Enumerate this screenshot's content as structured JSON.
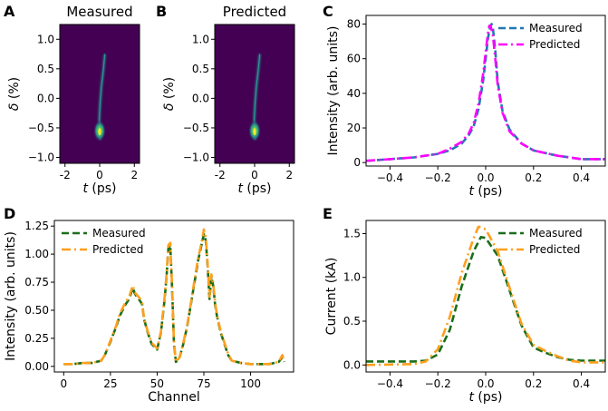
{
  "colors": {
    "measured_blue": "#1f77b4",
    "predicted_magenta": "#ff00ff",
    "measured_green": "#1a6e1a",
    "predicted_orange": "#ff9f1c",
    "image_bg": "#440154"
  },
  "panels": {
    "A": {
      "letter": "A",
      "title": "Measured"
    },
    "B": {
      "letter": "B",
      "title": "Predicted"
    },
    "C": {
      "letter": "C"
    },
    "D": {
      "letter": "D"
    },
    "E": {
      "letter": "E"
    }
  },
  "chart_data": [
    {
      "id": "A",
      "type": "heatmap",
      "title": "Measured",
      "xlabel": "t (ps)",
      "ylabel": "δ (%)",
      "xlim": [
        -2.3,
        2.3
      ],
      "ylim": [
        -1.1,
        1.25
      ],
      "xticks": [
        -2,
        0,
        2
      ],
      "yticks": [
        -1.0,
        -0.5,
        0.0,
        0.5,
        1.0
      ],
      "colormap": "viridis",
      "trace": [
        [
          0.3,
          0.75
        ],
        [
          0.22,
          0.5
        ],
        [
          0.1,
          0.2
        ],
        [
          0.02,
          -0.1
        ],
        [
          -0.02,
          -0.35
        ],
        [
          0.0,
          -0.55
        ],
        [
          0.02,
          -0.7
        ]
      ]
    },
    {
      "id": "B",
      "type": "heatmap",
      "title": "Predicted",
      "xlabel": "t (ps)",
      "ylabel": "δ (%)",
      "xlim": [
        -2.3,
        2.3
      ],
      "ylim": [
        -1.1,
        1.25
      ],
      "xticks": [
        -2,
        0,
        2
      ],
      "yticks": [
        -1.0,
        -0.5,
        0.0,
        0.5,
        1.0
      ],
      "colormap": "viridis",
      "trace": [
        [
          0.3,
          0.75
        ],
        [
          0.22,
          0.5
        ],
        [
          0.1,
          0.2
        ],
        [
          0.02,
          -0.1
        ],
        [
          -0.02,
          -0.35
        ],
        [
          0.0,
          -0.55
        ],
        [
          0.02,
          -0.7
        ]
      ]
    },
    {
      "id": "C",
      "type": "line",
      "xlabel": "t (ps)",
      "ylabel": "Intensity (arb. units)",
      "xlim": [
        -0.5,
        0.5
      ],
      "ylim": [
        -2,
        85
      ],
      "xticks": [
        -0.4,
        -0.2,
        0.0,
        0.2,
        0.4
      ],
      "xtick_labels": [
        "−0.4",
        "−0.2",
        "0.0",
        "0.2",
        "0.4"
      ],
      "yticks": [
        0,
        20,
        40,
        60,
        80
      ],
      "legend": "top-right",
      "series": [
        {
          "name": "Measured",
          "color": "#1f77b4",
          "style": "dashed",
          "x": [
            -0.5,
            -0.4,
            -0.3,
            -0.2,
            -0.15,
            -0.1,
            -0.07,
            -0.05,
            -0.03,
            -0.01,
            0.0,
            0.01,
            0.02,
            0.025,
            0.03,
            0.04,
            0.05,
            0.07,
            0.1,
            0.15,
            0.2,
            0.3,
            0.4,
            0.5
          ],
          "y": [
            1,
            2,
            3,
            5,
            7,
            11,
            16,
            21,
            31,
            48,
            60,
            72,
            79,
            80,
            78,
            65,
            47,
            30,
            19,
            11,
            7,
            4,
            2,
            2
          ]
        },
        {
          "name": "Predicted",
          "color": "#ff00ff",
          "style": "dashdot",
          "x": [
            -0.5,
            -0.4,
            -0.3,
            -0.2,
            -0.15,
            -0.1,
            -0.07,
            -0.05,
            -0.03,
            -0.01,
            0.0,
            0.01,
            0.015,
            0.02,
            0.03,
            0.04,
            0.05,
            0.07,
            0.1,
            0.15,
            0.2,
            0.3,
            0.4,
            0.5
          ],
          "y": [
            1,
            2,
            3,
            5,
            8,
            12,
            17,
            23,
            34,
            52,
            64,
            75,
            79,
            79,
            74,
            60,
            45,
            29,
            18,
            11,
            7,
            4,
            2,
            2
          ]
        }
      ]
    },
    {
      "id": "D",
      "type": "line",
      "xlabel": "Channel",
      "ylabel": "Intensity (arb. units)",
      "xlim": [
        -5,
        123
      ],
      "ylim": [
        -0.05,
        1.3
      ],
      "xticks": [
        0,
        25,
        50,
        75,
        100
      ],
      "yticks": [
        0.0,
        0.25,
        0.5,
        0.75,
        1.0,
        1.25
      ],
      "ytick_labels": [
        "0.00",
        "0.25",
        "0.50",
        "0.75",
        "1.00",
        "1.25"
      ],
      "legend": "top-left",
      "series": [
        {
          "name": "Measured",
          "color": "#1a6e1a",
          "style": "dashed",
          "x": [
            0,
            5,
            10,
            15,
            20,
            22,
            25,
            28,
            30,
            33,
            35,
            37,
            38,
            40,
            41,
            42,
            43,
            45,
            47,
            50,
            52,
            54,
            55,
            56,
            57,
            58,
            59,
            60,
            62,
            64,
            66,
            68,
            70,
            72,
            74,
            75,
            76,
            77,
            78,
            79,
            80,
            81,
            82,
            84,
            86,
            88,
            90,
            95,
            100,
            105,
            110,
            115,
            117,
            118
          ],
          "y": [
            0.02,
            0.02,
            0.03,
            0.03,
            0.05,
            0.1,
            0.22,
            0.35,
            0.45,
            0.55,
            0.6,
            0.7,
            0.65,
            0.6,
            0.58,
            0.55,
            0.42,
            0.3,
            0.2,
            0.15,
            0.3,
            0.6,
            0.8,
            1.05,
            1.08,
            0.7,
            0.2,
            0.04,
            0.08,
            0.2,
            0.35,
            0.55,
            0.75,
            0.95,
            1.1,
            1.18,
            1.12,
            0.9,
            0.6,
            0.8,
            0.72,
            0.55,
            0.45,
            0.3,
            0.2,
            0.1,
            0.05,
            0.03,
            0.02,
            0.02,
            0.02,
            0.04,
            0.08,
            0.04
          ]
        },
        {
          "name": "Predicted",
          "color": "#ff9f1c",
          "style": "dashdot",
          "x": [
            0,
            5,
            10,
            15,
            20,
            22,
            25,
            28,
            30,
            33,
            35,
            37,
            38,
            40,
            41,
            42,
            43,
            45,
            47,
            50,
            52,
            54,
            55,
            56,
            57,
            58,
            59,
            60,
            62,
            64,
            66,
            68,
            70,
            72,
            74,
            75,
            76,
            77,
            78,
            79,
            80,
            81,
            82,
            84,
            86,
            88,
            90,
            95,
            100,
            105,
            110,
            115,
            117,
            118
          ],
          "y": [
            0.02,
            0.02,
            0.03,
            0.03,
            0.05,
            0.1,
            0.23,
            0.36,
            0.47,
            0.57,
            0.62,
            0.72,
            0.66,
            0.62,
            0.6,
            0.56,
            0.43,
            0.31,
            0.21,
            0.16,
            0.31,
            0.62,
            0.82,
            1.08,
            1.1,
            0.72,
            0.21,
            0.04,
            0.08,
            0.21,
            0.36,
            0.56,
            0.77,
            0.97,
            1.12,
            1.22,
            1.15,
            0.92,
            0.62,
            0.82,
            0.74,
            0.57,
            0.46,
            0.31,
            0.21,
            0.11,
            0.05,
            0.03,
            0.02,
            0.02,
            0.02,
            0.04,
            0.1,
            0.04
          ]
        }
      ]
    },
    {
      "id": "E",
      "type": "line",
      "xlabel": "t (ps)",
      "ylabel": "Current (kA)",
      "xlim": [
        -0.5,
        0.5
      ],
      "ylim": [
        -0.08,
        1.65
      ],
      "xticks": [
        -0.4,
        -0.2,
        0.0,
        0.2,
        0.4
      ],
      "xtick_labels": [
        "−0.4",
        "−0.2",
        "0.0",
        "0.2",
        "0.4"
      ],
      "yticks": [
        0.0,
        0.5,
        1.0,
        1.5
      ],
      "legend": "top-right",
      "series": [
        {
          "name": "Measured",
          "color": "#1a6e1a",
          "style": "dashed",
          "x": [
            -0.5,
            -0.3,
            -0.25,
            -0.2,
            -0.15,
            -0.1,
            -0.05,
            -0.02,
            0.0,
            0.05,
            0.1,
            0.15,
            0.2,
            0.25,
            0.3,
            0.35,
            0.4,
            0.5
          ],
          "y": [
            0.04,
            0.04,
            0.05,
            0.12,
            0.4,
            0.9,
            1.3,
            1.46,
            1.45,
            1.25,
            0.85,
            0.45,
            0.2,
            0.14,
            0.09,
            0.06,
            0.05,
            0.05
          ]
        },
        {
          "name": "Predicted",
          "color": "#ff9f1c",
          "style": "dashdot",
          "x": [
            -0.5,
            -0.3,
            -0.25,
            -0.2,
            -0.15,
            -0.1,
            -0.05,
            -0.03,
            0.0,
            0.05,
            0.1,
            0.15,
            0.2,
            0.25,
            0.3,
            0.35,
            0.4,
            0.5
          ],
          "y": [
            0.0,
            0.01,
            0.04,
            0.18,
            0.55,
            1.05,
            1.45,
            1.58,
            1.55,
            1.3,
            0.88,
            0.47,
            0.23,
            0.16,
            0.1,
            0.05,
            0.03,
            0.03
          ]
        }
      ]
    }
  ]
}
